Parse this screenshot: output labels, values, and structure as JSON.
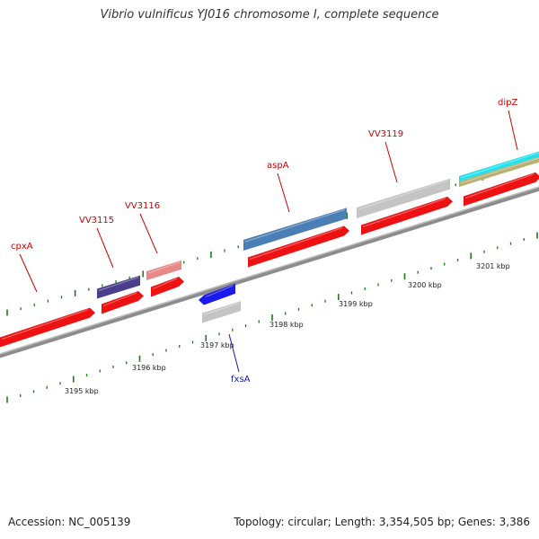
{
  "title": "Vibrio vulnificus YJ016 chromosome I, complete sequence",
  "footer": {
    "accession": "Accession: NC_005139",
    "topology": "Topology: circular; Length: 3,354,505 bp; Genes: 3,386"
  },
  "colors": {
    "backbone": "#8c8c8c",
    "tick": "#1a7a1a",
    "gene_red": "#ee1111",
    "label_red": "#cc0000",
    "label_blue": "#1a1aaa"
  },
  "ruler_labels": [
    "3195 kbp",
    "3196 kbp",
    "3197 kbp",
    "3198 kbp",
    "3199 kbp",
    "3200 kbp",
    "3201 kbp"
  ],
  "gene_labels": [
    "cpxA",
    "VV3115",
    "VV3116",
    "aspA",
    "VV3119",
    "dipZ",
    "fxsA"
  ]
}
